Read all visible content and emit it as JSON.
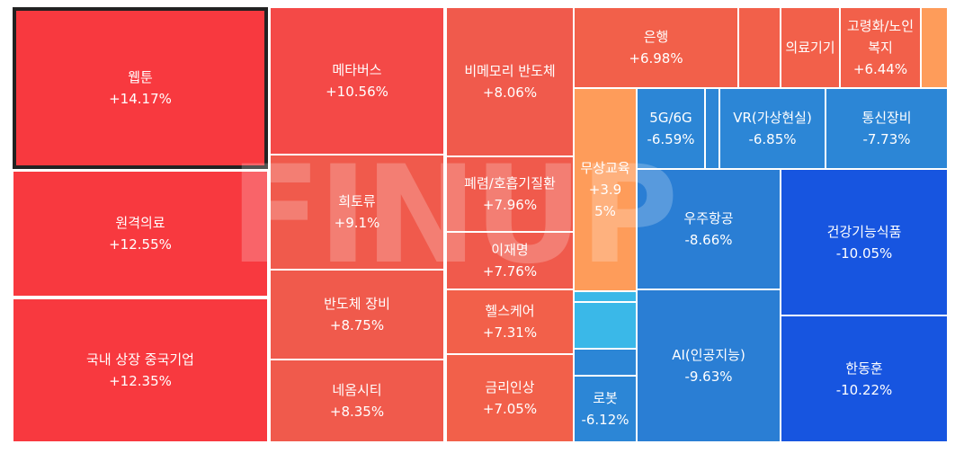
{
  "chart_data": {
    "type": "treemap",
    "selected": "웹툰",
    "items": [
      {
        "name": "웹툰",
        "change": "+14.17%",
        "value": 14.17,
        "color": "#f8393f"
      },
      {
        "name": "원격의료",
        "change": "+12.55%",
        "value": 12.55,
        "color": "#f8393f"
      },
      {
        "name": "국내 상장 중국기업",
        "change": "+12.35%",
        "value": 12.35,
        "color": "#f8393f"
      },
      {
        "name": "메타버스",
        "change": "+10.56%",
        "value": 10.56,
        "color": "#f44947"
      },
      {
        "name": "희토류",
        "change": "+9.1%",
        "value": 9.1,
        "color": "#f05a4c"
      },
      {
        "name": "반도체 장비",
        "change": "+8.75%",
        "value": 8.75,
        "color": "#f05a4c"
      },
      {
        "name": "네옴시티",
        "change": "+8.35%",
        "value": 8.35,
        "color": "#f05a4c"
      },
      {
        "name": "비메모리 반도체",
        "change": "+8.06%",
        "value": 8.06,
        "color": "#f05a4c"
      },
      {
        "name": "폐렴/호흡기질환",
        "change": "+7.96%",
        "value": 7.96,
        "color": "#f05a4c"
      },
      {
        "name": "이재명",
        "change": "+7.76%",
        "value": 7.76,
        "color": "#f05a4c"
      },
      {
        "name": "헬스케어",
        "change": "+7.31%",
        "value": 7.31,
        "color": "#f2604a"
      },
      {
        "name": "금리인상",
        "change": "+7.05%",
        "value": 7.05,
        "color": "#f2604a"
      },
      {
        "name": "은행",
        "change": "+6.98%",
        "value": 6.98,
        "color": "#f2604a"
      },
      {
        "name": "",
        "change": "",
        "value": null,
        "color": "#f2604a"
      },
      {
        "name": "의료기기",
        "change": "",
        "value": null,
        "color": "#f2604a"
      },
      {
        "name": "고령화/노인복지",
        "change": "+6.44%",
        "value": 6.44,
        "color": "#f2604a"
      },
      {
        "name": "",
        "change": "",
        "value": null,
        "color": "#fe9c5a"
      },
      {
        "name": "무상교육",
        "change": "+3.95%",
        "value": 3.95,
        "color": "#fe9c5a"
      },
      {
        "name": "5G/6G",
        "change": "-6.59%",
        "value": -6.59,
        "color": "#2c86d6"
      },
      {
        "name": "",
        "change": "",
        "value": null,
        "color": "#2c86d6"
      },
      {
        "name": "VR(가상현실)",
        "change": "-6.85%",
        "value": -6.85,
        "color": "#2c86d6"
      },
      {
        "name": "통신장비",
        "change": "-7.73%",
        "value": -7.73,
        "color": "#2c86d6"
      },
      {
        "name": "우주항공",
        "change": "-8.66%",
        "value": -8.66,
        "color": "#2a7ed4"
      },
      {
        "name": "건강기능식품",
        "change": "-10.05%",
        "value": -10.05,
        "color": "#1755e0"
      },
      {
        "name": "",
        "change": "",
        "value": null,
        "color": "#3ab8e8"
      },
      {
        "name": "",
        "change": "",
        "value": null,
        "color": "#3ab8e8"
      },
      {
        "name": "",
        "change": "",
        "value": null,
        "color": "#2c86d6"
      },
      {
        "name": "로봇",
        "change": "-6.12%",
        "value": -6.12,
        "color": "#2c86d6"
      },
      {
        "name": "AI(인공지능)",
        "change": "-9.63%",
        "value": -9.63,
        "color": "#2a7ed4"
      },
      {
        "name": "한동훈",
        "change": "-10.22%",
        "value": -10.22,
        "color": "#1755e0"
      }
    ]
  },
  "watermark": "FINUP"
}
